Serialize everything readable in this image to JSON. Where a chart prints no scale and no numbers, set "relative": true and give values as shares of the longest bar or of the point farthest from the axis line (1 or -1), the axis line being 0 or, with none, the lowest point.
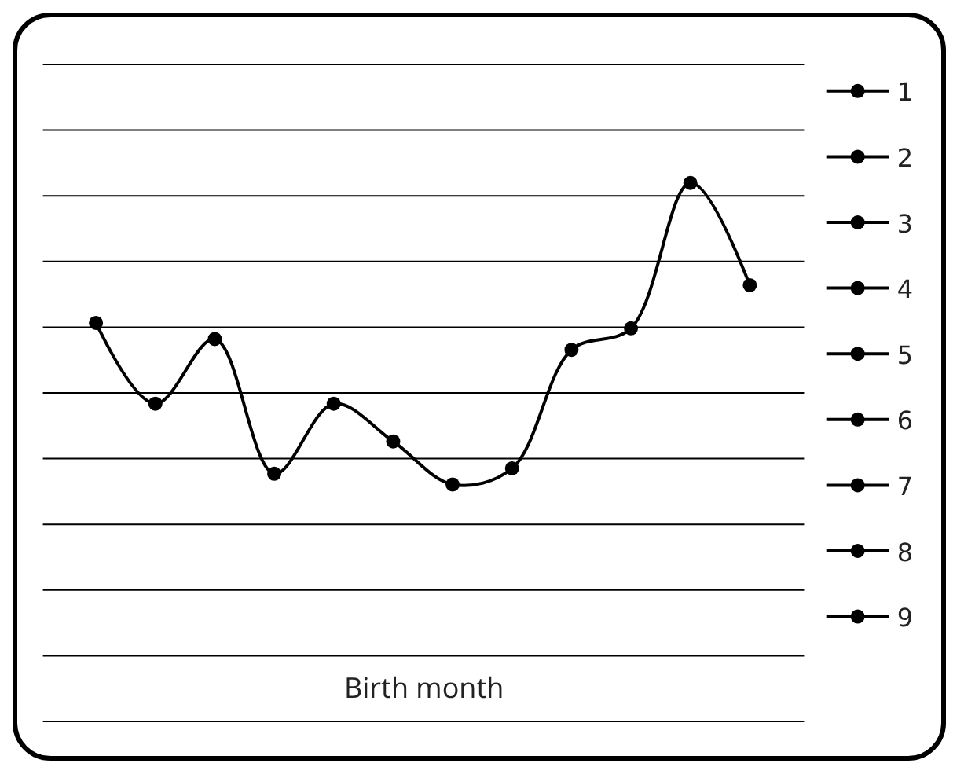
{
  "chart_data": {
    "type": "line",
    "xlabel": "Birth month",
    "relative": true,
    "grid": true,
    "legend": "right",
    "marker": "circle",
    "line_style": "solid",
    "categories": [
      null,
      null,
      null,
      null,
      null,
      null,
      null,
      null,
      null,
      null,
      null,
      null
    ],
    "series": [
      {
        "name": "1",
        "color": "#000000",
        "values": [
          0.74,
          0.59,
          0.71,
          0.46,
          0.59,
          0.52,
          0.44,
          0.47,
          0.69,
          0.73,
          1,
          0.81
        ]
      },
      {
        "name": "2",
        "color": "#000000",
        "values": [
          null,
          null,
          null,
          null,
          null,
          null,
          null,
          null,
          null,
          null,
          null,
          null
        ]
      },
      {
        "name": "3",
        "color": "#000000",
        "values": [
          null,
          null,
          null,
          null,
          null,
          null,
          null,
          null,
          null,
          null,
          null,
          null
        ]
      },
      {
        "name": "4",
        "color": "#000000",
        "values": [
          null,
          null,
          null,
          null,
          null,
          null,
          null,
          null,
          null,
          null,
          null,
          null
        ]
      },
      {
        "name": "5",
        "color": "#000000",
        "values": [
          null,
          null,
          null,
          null,
          null,
          null,
          null,
          null,
          null,
          null,
          null,
          null
        ]
      },
      {
        "name": "6",
        "color": "#000000",
        "values": [
          null,
          null,
          null,
          null,
          null,
          null,
          null,
          null,
          null,
          null,
          null,
          null
        ]
      },
      {
        "name": "7",
        "color": "#000000",
        "values": [
          null,
          null,
          null,
          null,
          null,
          null,
          null,
          null,
          null,
          null,
          null,
          null
        ]
      },
      {
        "name": "8",
        "color": "#000000",
        "values": [
          null,
          null,
          null,
          null,
          null,
          null,
          null,
          null,
          null,
          null,
          null,
          null
        ]
      },
      {
        "name": "9",
        "color": "#000000",
        "values": [
          null,
          null,
          null,
          null,
          null,
          null,
          null,
          null,
          null,
          null,
          null,
          null
        ]
      }
    ]
  }
}
